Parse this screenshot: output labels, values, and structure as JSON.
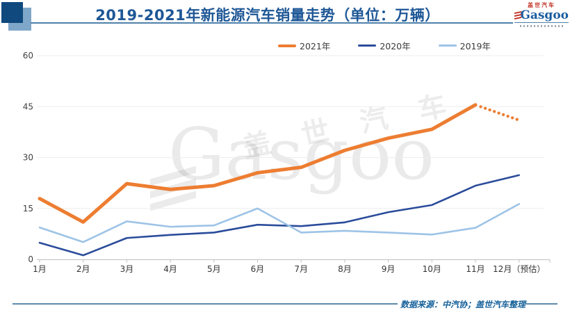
{
  "header": {
    "title": "2019-2021年新能源汽车销量走势（单位：万辆）",
    "logo": {
      "brand_cn": "盖世汽车",
      "brand_en": "Gasgoo"
    }
  },
  "watermark": {
    "brand_cn": "盖 世 汽 车",
    "brand_en": "Gasgoo"
  },
  "footer": {
    "source": "数据来源：中汽协；盖世汽车整理"
  },
  "colors": {
    "title": "#1e5796",
    "header_rule": "#4e80a9",
    "source_text": "#17629b",
    "axis": "#bfbfbf",
    "grid": "#ededed",
    "tick_label": "#404040"
  },
  "chart_data": {
    "type": "line",
    "title": "2019-2021年新能源汽车销量走势",
    "unit": "万辆",
    "categories": [
      "1月",
      "2月",
      "3月",
      "4月",
      "5月",
      "6月",
      "7月",
      "8月",
      "9月",
      "10月",
      "11月",
      "12月（预估）"
    ],
    "yticks": [
      0,
      15,
      30,
      45,
      60
    ],
    "ylim": [
      0,
      60
    ],
    "grid": true,
    "legend_position": "top",
    "series": [
      {
        "name": "2021年",
        "color": "#ed7d31",
        "line_width": 5,
        "values": [
          17.9,
          11.0,
          22.3,
          20.6,
          21.7,
          25.5,
          27.1,
          32.1,
          35.7,
          38.3,
          45.5,
          41.0
        ],
        "last_segment_dotted": true
      },
      {
        "name": "2020年",
        "color": "#2b4c9b",
        "line_width": 2.6,
        "values": [
          4.9,
          1.2,
          6.3,
          7.2,
          7.9,
          10.2,
          9.8,
          10.9,
          13.9,
          16.0,
          21.7,
          24.8
        ],
        "last_segment_dotted": false
      },
      {
        "name": "2019年",
        "color": "#9dc3e6",
        "line_width": 2.6,
        "values": [
          9.4,
          5.1,
          11.2,
          9.6,
          10.0,
          15.0,
          7.9,
          8.4,
          7.9,
          7.3,
          9.3,
          16.3
        ],
        "last_segment_dotted": false
      }
    ]
  }
}
